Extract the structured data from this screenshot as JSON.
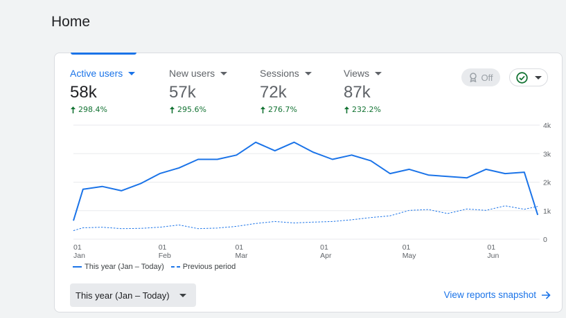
{
  "page": {
    "title": "Home"
  },
  "metrics": [
    {
      "label": "Active users",
      "value": "58k",
      "change": "298.4%"
    },
    {
      "label": "New users",
      "value": "57k",
      "change": "295.6%"
    },
    {
      "label": "Sessions",
      "value": "72k",
      "change": "276.7%"
    },
    {
      "label": "Views",
      "value": "87k",
      "change": "232.2%"
    }
  ],
  "controls": {
    "comparison_toggle_label": "Off",
    "comparison_toggle_icon": "trophy-badge-icon",
    "status_icon": "check-circle-icon"
  },
  "legend": {
    "current": "This year (Jan – Today)",
    "previous": "Previous period"
  },
  "date_range": {
    "label": "This year (Jan – Today)"
  },
  "footer": {
    "snapshot_link": "View reports snapshot"
  },
  "colors": {
    "accent": "#1a73e8",
    "positive": "#137333",
    "grid": "#e8eaed"
  },
  "chart_data": {
    "type": "line",
    "x_tick_labels": [
      {
        "day": "01",
        "month": "Jan",
        "week": 0
      },
      {
        "day": "01",
        "month": "Feb",
        "week": 4.43
      },
      {
        "day": "01",
        "month": "Mar",
        "week": 8.43
      },
      {
        "day": "01",
        "month": "Apr",
        "week": 12.86
      },
      {
        "day": "01",
        "month": "May",
        "week": 17.14
      },
      {
        "day": "01",
        "month": "Jun",
        "week": 21.57
      }
    ],
    "y_tick_labels": [
      "0",
      "1k",
      "2k",
      "3k",
      "4k"
    ],
    "ylim": [
      0,
      4000
    ],
    "y_axis_position": "right",
    "grid": true,
    "legend_position": "bottom-left",
    "series": [
      {
        "name": "This year (Jan – Today)",
        "style": "solid",
        "x": [
          0,
          0.5,
          1.5,
          2.5,
          3.5,
          4.5,
          5.5,
          6.5,
          7.5,
          8.5,
          9.5,
          10.5,
          11.5,
          12.5,
          13.5,
          14.5,
          15.5,
          16.5,
          17.5,
          18.5,
          19.5,
          20.5,
          21.5,
          22.5,
          23.5,
          24.2
        ],
        "y": [
          650,
          1750,
          1850,
          1700,
          1950,
          2300,
          2500,
          2800,
          2800,
          2950,
          3400,
          3100,
          3400,
          3050,
          2800,
          2950,
          2750,
          2300,
          2450,
          2250,
          2200,
          2150,
          2450,
          2300,
          2350,
          850
        ]
      },
      {
        "name": "Previous period",
        "style": "dashed",
        "x": [
          0,
          0.5,
          1.5,
          2.5,
          3.5,
          4.5,
          5.5,
          6.5,
          7.5,
          8.5,
          9.5,
          10.5,
          11.5,
          12.5,
          13.5,
          14.5,
          15.5,
          16.5,
          17.5,
          18.5,
          19.5,
          20.5,
          21.5,
          22.5,
          23.5,
          24.2
        ],
        "y": [
          300,
          400,
          420,
          370,
          380,
          420,
          500,
          370,
          390,
          450,
          550,
          620,
          570,
          600,
          620,
          680,
          760,
          820,
          1010,
          1040,
          900,
          1060,
          1010,
          1170,
          1050,
          1150
        ]
      }
    ]
  }
}
